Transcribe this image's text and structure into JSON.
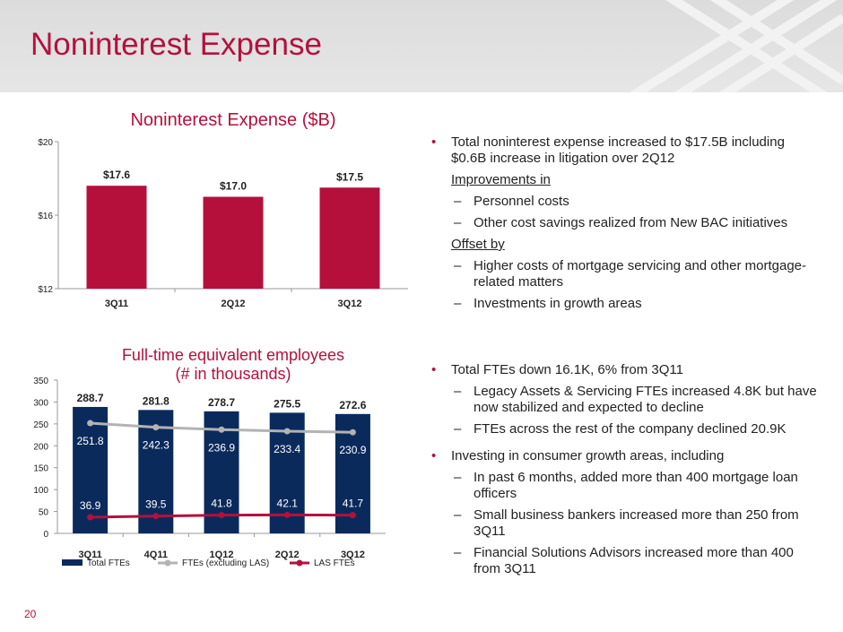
{
  "page": {
    "title": "Noninterest Expense",
    "page_number": "20"
  },
  "colors": {
    "accent": "#b5103c",
    "bar_navy": "#0b2a5c",
    "line_gray": "#b3b3b3",
    "line_red": "#b5103c"
  },
  "chart1_title": "Noninterest Expense ($B)",
  "chart2_title_line1": "Full-time equivalent employees",
  "chart2_title_line2": "(# in thousands)",
  "chart_data": [
    {
      "type": "bar",
      "title": "Noninterest Expense ($B)",
      "categories": [
        "3Q11",
        "2Q12",
        "3Q12"
      ],
      "values": [
        17.6,
        17.0,
        17.5
      ],
      "value_labels": [
        "$17.6",
        "$17.0",
        "$17.5"
      ],
      "ylim": [
        12,
        20
      ],
      "yticks": [
        "$12",
        "$16",
        "$20"
      ],
      "ytick_values": [
        12,
        16,
        20
      ]
    },
    {
      "type": "bar",
      "title": "Full-time equivalent employees (# in thousands)",
      "categories": [
        "3Q11",
        "4Q11",
        "1Q12",
        "2Q12",
        "3Q12"
      ],
      "ylim": [
        0,
        350
      ],
      "yticks": [
        "0",
        "50",
        "100",
        "150",
        "200",
        "250",
        "300",
        "350"
      ],
      "ytick_values": [
        0,
        50,
        100,
        150,
        200,
        250,
        300,
        350
      ],
      "series": [
        {
          "name": "Total FTEs",
          "type": "bar",
          "values": [
            288.7,
            281.8,
            278.7,
            275.5,
            272.6
          ],
          "labels": [
            "288.7",
            "281.8",
            "278.7",
            "275.5",
            "272.6"
          ]
        },
        {
          "name": "FTEs (excluding LAS)",
          "type": "line",
          "values": [
            251.8,
            242.3,
            236.9,
            233.4,
            230.9
          ],
          "labels": [
            "251.8",
            "242.3",
            "236.9",
            "233.4",
            "230.9"
          ]
        },
        {
          "name": "LAS FTEs",
          "type": "line",
          "values": [
            36.9,
            39.5,
            41.8,
            42.1,
            41.7
          ],
          "labels": [
            "36.9",
            "39.5",
            "41.8",
            "42.1",
            "41.7"
          ]
        }
      ],
      "legend_position": "bottom"
    }
  ],
  "bullets_top": [
    {
      "kind": "b",
      "text": "Total noninterest expense increased to $17.5B including $0.6B increase in litigation over 2Q12"
    },
    {
      "kind": "u",
      "text": "Improvements in"
    },
    {
      "kind": "sub",
      "text": "Personnel costs"
    },
    {
      "kind": "sub",
      "text": "Other cost savings realized from New BAC initiatives"
    },
    {
      "kind": "u",
      "text": "Offset by"
    },
    {
      "kind": "sub",
      "text": "Higher costs of mortgage servicing and other mortgage-related matters"
    },
    {
      "kind": "sub",
      "text": "Investments in growth areas"
    }
  ],
  "bullets_bottom": [
    {
      "kind": "b",
      "text": "Total FTEs down 16.1K, 6% from 3Q11"
    },
    {
      "kind": "sub",
      "text": "Legacy Assets & Servicing FTEs increased 4.8K but have now stabilized and expected to decline"
    },
    {
      "kind": "sub",
      "text": "FTEs across the rest of the company declined 20.9K"
    },
    {
      "kind": "b",
      "text": "Investing in consumer growth areas, including"
    },
    {
      "kind": "sub",
      "text": "In past 6 months, added more than 400 mortgage loan officers"
    },
    {
      "kind": "sub",
      "text": "Small business bankers increased more than 250 from 3Q11"
    },
    {
      "kind": "sub",
      "text": "Financial Solutions Advisors increased more than 400 from 3Q11"
    }
  ]
}
